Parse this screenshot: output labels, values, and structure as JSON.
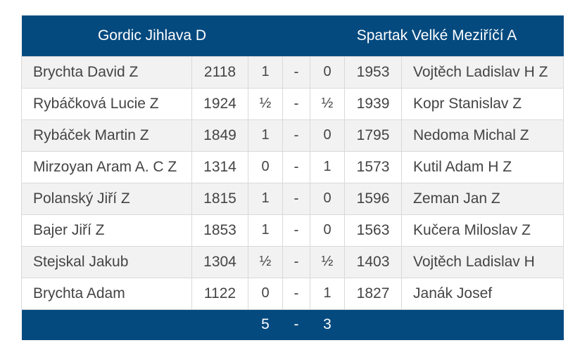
{
  "match": {
    "home_team": "Gordic Jihlava D",
    "away_team": "Spartak Velké Meziříčí A",
    "total": {
      "home": "5",
      "separator": "-",
      "away": "3"
    }
  },
  "rows": [
    {
      "home_player": "Brychta David Z",
      "home_rating": "2118",
      "home_result": "1",
      "sep": "-",
      "away_result": "0",
      "away_rating": "1953",
      "away_player": "Vojtěch Ladislav H Z"
    },
    {
      "home_player": "Rybáčková Lucie Z",
      "home_rating": "1924",
      "home_result": "½",
      "sep": "-",
      "away_result": "½",
      "away_rating": "1939",
      "away_player": "Kopr Stanislav Z"
    },
    {
      "home_player": "Rybáček Martin Z",
      "home_rating": "1849",
      "home_result": "1",
      "sep": "-",
      "away_result": "0",
      "away_rating": "1795",
      "away_player": "Nedoma Michal Z"
    },
    {
      "home_player": "Mirzoyan Aram A. C Z",
      "home_rating": "1314",
      "home_result": "0",
      "sep": "-",
      "away_result": "1",
      "away_rating": "1573",
      "away_player": "Kutil Adam H Z"
    },
    {
      "home_player": "Polanský Jiří Z",
      "home_rating": "1815",
      "home_result": "1",
      "sep": "-",
      "away_result": "0",
      "away_rating": "1596",
      "away_player": "Zeman Jan Z"
    },
    {
      "home_player": "Bajer Jiří Z",
      "home_rating": "1853",
      "home_result": "1",
      "sep": "-",
      "away_result": "0",
      "away_rating": "1563",
      "away_player": "Kučera Miloslav Z"
    },
    {
      "home_player": "Stejskal Jakub",
      "home_rating": "1304",
      "home_result": "½",
      "sep": "-",
      "away_result": "½",
      "away_rating": "1403",
      "away_player": "Vojtěch Ladislav H"
    },
    {
      "home_player": "Brychta Adam",
      "home_rating": "1122",
      "home_result": "0",
      "sep": "-",
      "away_result": "1",
      "away_rating": "1827",
      "away_player": "Janák Josef"
    }
  ],
  "colors": {
    "header_bg": "#044a7f",
    "row_alt_bg": "#f2f2f2",
    "text": "#444444",
    "border": "#d9d9d9"
  }
}
